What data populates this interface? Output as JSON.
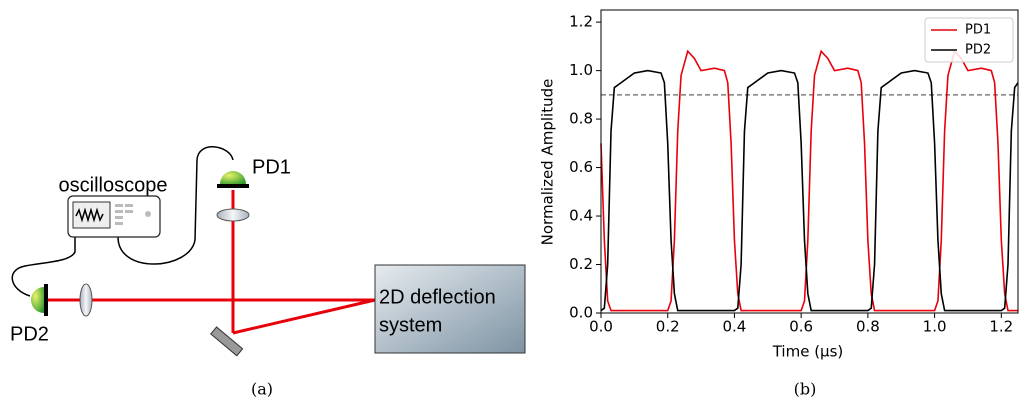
{
  "diagram": {
    "labels": {
      "oscilloscope": "oscilloscope",
      "pd1": "PD1",
      "pd2": "PD2",
      "deflection_line1": "2D deflection",
      "deflection_line2": "system"
    },
    "caption": "(a)"
  },
  "chart_data": {
    "type": "line",
    "caption": "(b)",
    "xlabel": "Time (μs)",
    "ylabel": "Normalized Amplitude",
    "xlim": [
      0,
      1.25
    ],
    "ylim": [
      0,
      1.25
    ],
    "xticks": [
      {
        "value": 0,
        "label": "0.0"
      },
      {
        "value": 0.2,
        "label": "0.2"
      },
      {
        "value": 0.4,
        "label": "0.4"
      },
      {
        "value": 0.6,
        "label": "0.6"
      },
      {
        "value": 0.8,
        "label": "0.8"
      },
      {
        "value": 1,
        "label": "1.0"
      },
      {
        "value": 1.2,
        "label": "1.2"
      }
    ],
    "yticks": [
      {
        "value": 0,
        "label": "0.0"
      },
      {
        "value": 0.2,
        "label": "0.2"
      },
      {
        "value": 0.4,
        "label": "0.4"
      },
      {
        "value": 0.6,
        "label": "0.6"
      },
      {
        "value": 0.8,
        "label": "0.8"
      },
      {
        "value": 1,
        "label": "1.0"
      },
      {
        "value": 1.2,
        "label": "1.2"
      }
    ],
    "hline": 0.9,
    "legend": "upper right",
    "series": [
      {
        "name": "PD1",
        "color": "#e8000b",
        "x": [
          0,
          0.01,
          0.02,
          0.03,
          0.1,
          0.2,
          0.21,
          0.22,
          0.23,
          0.24,
          0.26,
          0.28,
          0.3,
          0.34,
          0.37,
          0.38,
          0.39,
          0.4,
          0.41,
          0.42,
          0.5,
          0.6,
          0.61,
          0.62,
          0.63,
          0.64,
          0.66,
          0.68,
          0.7,
          0.74,
          0.77,
          0.78,
          0.79,
          0.8,
          0.81,
          0.82,
          0.9,
          1.0,
          1.01,
          1.02,
          1.03,
          1.04,
          1.06,
          1.08,
          1.1,
          1.14,
          1.17,
          1.18,
          1.19,
          1.2,
          1.21,
          1.22,
          1.25
        ],
        "values": [
          0.7,
          0.3,
          0.05,
          0.01,
          0.01,
          0.01,
          0.05,
          0.3,
          0.75,
          0.98,
          1.08,
          1.05,
          1.0,
          1.01,
          1.0,
          0.95,
          0.7,
          0.3,
          0.08,
          0.01,
          0.01,
          0.01,
          0.05,
          0.3,
          0.75,
          0.98,
          1.08,
          1.05,
          1.0,
          1.01,
          1.0,
          0.95,
          0.7,
          0.3,
          0.08,
          0.01,
          0.01,
          0.01,
          0.05,
          0.3,
          0.75,
          0.98,
          1.08,
          1.05,
          1.0,
          1.01,
          1.0,
          0.95,
          0.7,
          0.3,
          0.08,
          0.01,
          0.01
        ]
      },
      {
        "name": "PD2",
        "color": "#000000",
        "x": [
          0,
          0.01,
          0.02,
          0.03,
          0.04,
          0.06,
          0.1,
          0.14,
          0.18,
          0.19,
          0.2,
          0.21,
          0.22,
          0.23,
          0.3,
          0.4,
          0.41,
          0.42,
          0.43,
          0.44,
          0.46,
          0.5,
          0.54,
          0.58,
          0.59,
          0.6,
          0.61,
          0.62,
          0.63,
          0.7,
          0.8,
          0.81,
          0.82,
          0.83,
          0.84,
          0.86,
          0.9,
          0.94,
          0.98,
          0.99,
          1.0,
          1.01,
          1.02,
          1.03,
          1.1,
          1.2,
          1.21,
          1.22,
          1.23,
          1.24,
          1.25
        ],
        "values": [
          0.01,
          0.02,
          0.2,
          0.75,
          0.93,
          0.95,
          0.99,
          1.0,
          0.99,
          0.95,
          0.7,
          0.3,
          0.08,
          0.01,
          0.01,
          0.01,
          0.02,
          0.2,
          0.75,
          0.93,
          0.95,
          0.99,
          1.0,
          0.99,
          0.95,
          0.7,
          0.3,
          0.08,
          0.01,
          0.01,
          0.01,
          0.02,
          0.2,
          0.75,
          0.93,
          0.95,
          0.99,
          1.0,
          0.99,
          0.95,
          0.7,
          0.3,
          0.08,
          0.01,
          0.01,
          0.01,
          0.02,
          0.2,
          0.75,
          0.93,
          0.95
        ]
      }
    ]
  }
}
